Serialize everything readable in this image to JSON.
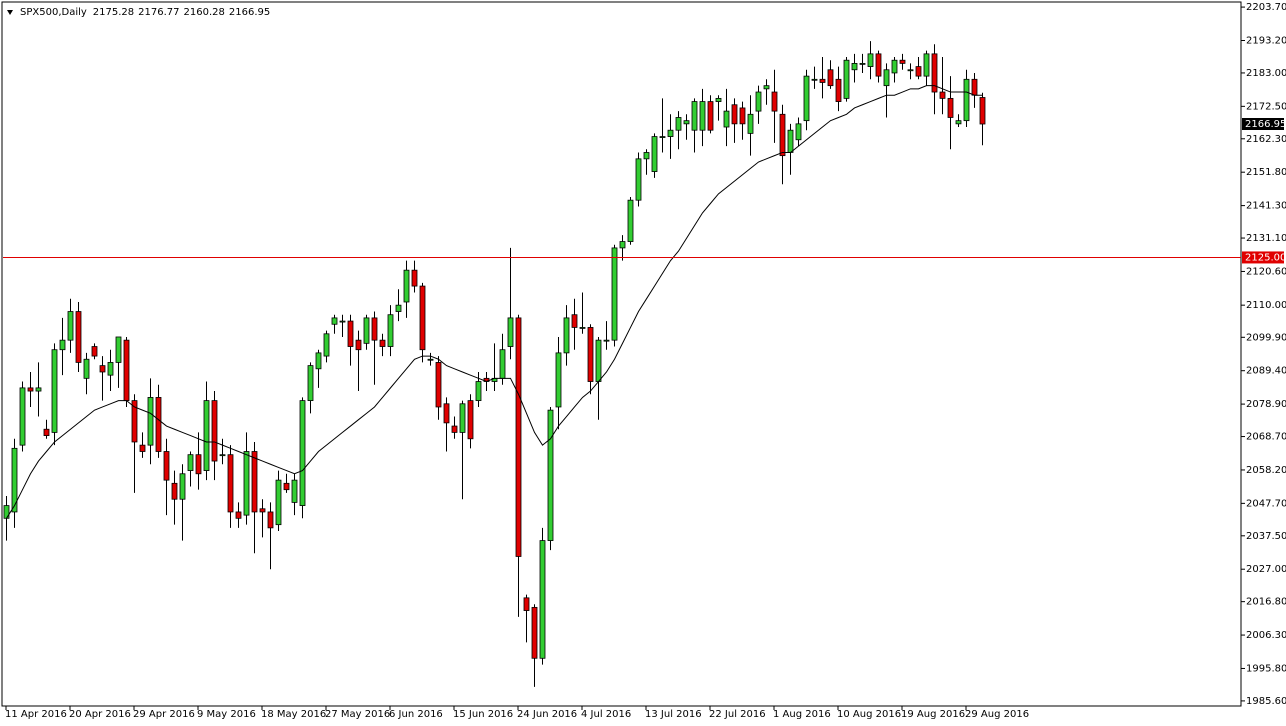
{
  "chart_data": {
    "type": "candlestick",
    "title": "SPX500,Daily",
    "categories": [
      "11 Apr 2016",
      null,
      null,
      null,
      null,
      null,
      null,
      null,
      "20 Apr 2016",
      null,
      null,
      null,
      null,
      null,
      null,
      null,
      "29 Apr 2016",
      null,
      null,
      null,
      null,
      null,
      null,
      null,
      "9 May 2016",
      null,
      null,
      null,
      null,
      null,
      null,
      null,
      "18 May 2016",
      null,
      null,
      null,
      null,
      null,
      null,
      null,
      "27 May 2016",
      null,
      null,
      null,
      null,
      null,
      null,
      null,
      "6 Jun 2016",
      null,
      null,
      null,
      null,
      null,
      null,
      null,
      "15 Jun 2016",
      null,
      null,
      null,
      null,
      null,
      null,
      null,
      "24 Jun 2016",
      null,
      null,
      null,
      null,
      null,
      null,
      null,
      "4 Jul 2016",
      null,
      null,
      null,
      null,
      null,
      null,
      null,
      "13 Jul 2016",
      null,
      null,
      null,
      null,
      null,
      null,
      null,
      "22 Jul 2016",
      null,
      null,
      null,
      null,
      null,
      null,
      null,
      "1 Aug 2016",
      null,
      null,
      null,
      null,
      null,
      null,
      null,
      "10 Aug 2016",
      null,
      null,
      null,
      null,
      null,
      null,
      null,
      "19 Aug 2016",
      null,
      null,
      null,
      null,
      null,
      null,
      null,
      "29 Aug 2016",
      null,
      null
    ],
    "open": [
      2043,
      2045,
      2066,
      2084,
      2083,
      2071,
      2070,
      2096,
      2099,
      2108,
      2087,
      2097,
      2091,
      2088,
      2092,
      2099,
      2080,
      2066,
      2066,
      2081,
      2064,
      2054,
      2049,
      2058,
      2063,
      2058,
      2080,
      2063,
      2063,
      2045,
      2044,
      2064,
      2046,
      2045,
      2041,
      2054,
      2048,
      2047,
      2080,
      2090,
      2094,
      2104,
      2105,
      2105,
      2099,
      2098,
      2106,
      2099,
      2097,
      2108,
      2111,
      2121,
      2116,
      2093,
      2092,
      2079,
      2072,
      2070,
      2080,
      2080,
      2087,
      2086,
      2087,
      2097,
      2106,
      2018,
      2015,
      1999,
      2036,
      2078,
      2095,
      2107,
      2103,
      2103,
      2086,
      2099,
      2099,
      2128,
      2130,
      2143,
      2156,
      2152,
      2163,
      2163,
      2165,
      2167,
      2165,
      2165,
      2174,
      2174,
      2166,
      2173,
      2172,
      2164,
      2171,
      2178,
      2177,
      2170,
      2158,
      2162,
      2168,
      2181,
      2181,
      2184,
      2181,
      2175,
      2184,
      2186,
      2185,
      2189,
      2179,
      2183,
      2187,
      2184,
      2185,
      2182,
      2189,
      2177,
      2175,
      2167,
      2168,
      2181,
      2175.28
    ],
    "high": [
      2050,
      2068,
      2086,
      2089,
      2092,
      2074,
      2098,
      2106,
      2112,
      2111,
      2095,
      2098,
      2094,
      2096,
      2100,
      2100,
      2082,
      2070,
      2087,
      2085,
      2068,
      2058,
      2060,
      2064,
      2070,
      2086,
      2083,
      2068,
      2066,
      2048,
      2070,
      2067,
      2049,
      2048,
      2058,
      2057,
      2057,
      2081,
      2092,
      2096,
      2102,
      2107,
      2107,
      2107,
      2102,
      2107,
      2108,
      2101,
      2110,
      2115,
      2124,
      2124,
      2117,
      2095,
      2094,
      2081,
      2075,
      2080,
      2082,
      2089,
      2089,
      2098,
      2101,
      2128,
      2107,
      2019,
      2016,
      2040,
      2078,
      2100,
      2110,
      2112,
      2114,
      2104,
      2100,
      2105,
      2129,
      2132,
      2144,
      2158,
      2159,
      2164,
      2175,
      2170,
      2171,
      2170,
      2175,
      2178,
      2176,
      2176,
      2178,
      2175,
      2174,
      2176,
      2179,
      2181,
      2184,
      2173,
      2167,
      2169,
      2184,
      2185,
      2188,
      2187,
      2185,
      2188,
      2189,
      2189,
      2193,
      2190,
      2186,
      2188,
      2189,
      2186,
      2188,
      2190,
      2192,
      2188,
      2182,
      2170,
      2184,
      2183,
      2176.77
    ],
    "low": [
      2036,
      2040,
      2064,
      2078,
      2075,
      2068,
      2066,
      2088,
      2095,
      2089,
      2082,
      2093,
      2080,
      2083,
      2084,
      2078,
      2051,
      2062,
      2060,
      2062,
      2044,
      2041,
      2036,
      2053,
      2052,
      2055,
      2055,
      2060,
      2040,
      2040,
      2041,
      2032,
      2037,
      2027,
      2039,
      2051,
      2044,
      2043,
      2076,
      2084,
      2092,
      2101,
      2100,
      2091,
      2083,
      2096,
      2085,
      2094,
      2094,
      2105,
      2106,
      2114,
      2092,
      2091,
      2074,
      2064,
      2068,
      2049,
      2065,
      2078,
      2083,
      2083,
      2085,
      2093,
      2012,
      2004,
      1990,
      1997,
      2033,
      2071,
      2091,
      2096,
      2101,
      2082,
      2074,
      2096,
      2097,
      2124,
      2129,
      2141,
      2151,
      2150,
      2158,
      2156,
      2159,
      2162,
      2158,
      2160,
      2164,
      2168,
      2160,
      2161,
      2162,
      2157,
      2167,
      2173,
      2161,
      2148,
      2151,
      2160,
      2165,
      2178,
      2175,
      2178,
      2171,
      2174,
      2180,
      2183,
      2181,
      2180,
      2169,
      2180,
      2184,
      2181,
      2181,
      2179,
      2170,
      2170,
      2159,
      2166,
      2166,
      2172,
      2160.28
    ],
    "close": [
      2047,
      2065,
      2084,
      2083,
      2084,
      2069,
      2096,
      2099,
      2108,
      2092,
      2093,
      2094,
      2089,
      2092,
      2100,
      2080,
      2067,
      2064,
      2081,
      2064,
      2055,
      2049,
      2057,
      2063,
      2057,
      2080,
      2061,
      2063,
      2045,
      2043,
      2064,
      2045,
      2045,
      2040,
      2055,
      2052,
      2055,
      2080,
      2091,
      2095,
      2101,
      2106,
      2105,
      2097,
      2096,
      2106,
      2099,
      2097,
      2107,
      2110,
      2121,
      2116,
      2096,
      2093,
      2078,
      2073,
      2070,
      2079,
      2068,
      2086,
      2086,
      2087,
      2096,
      2106,
      2031,
      2014,
      1999,
      2036,
      2077,
      2095,
      2106,
      2103,
      2103,
      2086,
      2099,
      2099,
      2128,
      2130,
      2143,
      2156,
      2158,
      2163,
      2163,
      2165,
      2169,
      2168,
      2174,
      2174,
      2165,
      2175,
      2171,
      2167,
      2167,
      2170,
      2177,
      2179,
      2171,
      2157,
      2165,
      2167,
      2182,
      2181,
      2180,
      2179,
      2174,
      2187,
      2186,
      2186,
      2189,
      2182,
      2184,
      2187,
      2186,
      2184,
      2182,
      2189,
      2177,
      2175,
      2169,
      2168,
      2181,
      2176,
      2166.95
    ],
    "moving_average": [
      2043,
      2047,
      2052,
      2057,
      2061,
      2064,
      2067,
      2069,
      2071,
      2073,
      2075,
      2077,
      2078,
      2079,
      2080,
      2080,
      2078,
      2077,
      2076,
      2074,
      2072,
      2071,
      2070,
      2069,
      2068,
      2067,
      2067,
      2066,
      2065,
      2064,
      2063,
      2062,
      2061,
      2060,
      2059,
      2058,
      2057,
      2058,
      2061,
      2064,
      2066,
      2068,
      2070,
      2072,
      2074,
      2076,
      2078,
      2081,
      2084,
      2087,
      2090,
      2093,
      2094,
      2094,
      2093,
      2091,
      2090,
      2089,
      2088,
      2087,
      2086,
      2087,
      2087,
      2087,
      2082,
      2076,
      2070,
      2066,
      2068,
      2072,
      2075,
      2078,
      2081,
      2083,
      2086,
      2089,
      2093,
      2098,
      2103,
      2108,
      2112,
      2116,
      2120,
      2124,
      2127,
      2131,
      2135,
      2139,
      2142,
      2145,
      2147,
      2149,
      2151,
      2153,
      2155,
      2156,
      2157,
      2158,
      2158,
      2160,
      2162,
      2164,
      2166,
      2168,
      2169,
      2170,
      2172,
      2173,
      2174,
      2175,
      2176,
      2176,
      2177,
      2178,
      2178,
      2179,
      2179,
      2178,
      2177,
      2177,
      2177,
      2176,
      2176
    ],
    "up_color": "#32cd32",
    "down_color": "#e00000",
    "ma_color": "#000000",
    "hline": {
      "value": 2125,
      "label": "2125.00",
      "color": "#e00000"
    },
    "ylim": [
      1984.0,
      2205.3
    ],
    "yticks": [
      {
        "value": 2203.7,
        "label": "2203.70"
      },
      {
        "value": 2193.2,
        "label": "2193.20"
      },
      {
        "value": 2183,
        "label": "2183.00"
      },
      {
        "value": 2172.5,
        "label": "2172.50"
      },
      {
        "value": 2162.3,
        "label": "2162.30"
      },
      {
        "value": 2151.8,
        "label": "2151.80"
      },
      {
        "value": 2141.3,
        "label": "2141.30"
      },
      {
        "value": 2131.1,
        "label": "2131.10"
      },
      {
        "value": 2120.6,
        "label": "2120.60"
      },
      {
        "value": 2110,
        "label": "2110.00"
      },
      {
        "value": 2099.9,
        "label": "2099.90"
      },
      {
        "value": 2089.4,
        "label": "2089.40"
      },
      {
        "value": 2078.9,
        "label": "2078.90"
      },
      {
        "value": 2068.7,
        "label": "2068.70"
      },
      {
        "value": 2058.2,
        "label": "2058.20"
      },
      {
        "value": 2047.7,
        "label": "2047.70"
      },
      {
        "value": 2037.5,
        "label": "2037.50"
      },
      {
        "value": 2027,
        "label": "2027.00"
      },
      {
        "value": 2016.8,
        "label": "2016.80"
      },
      {
        "value": 2006.3,
        "label": "2006.30"
      },
      {
        "value": 1995.8,
        "label": "1995.80"
      },
      {
        "value": 1985.6,
        "label": "1985.60"
      }
    ]
  }
}
